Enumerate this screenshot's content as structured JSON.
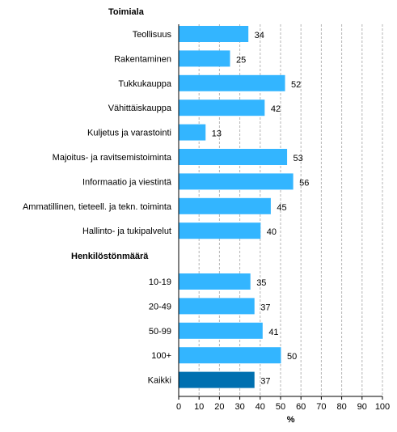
{
  "chart_data": {
    "type": "bar",
    "orientation": "horizontal",
    "xlabel": "%",
    "xlim": [
      0,
      100
    ],
    "xticks": [
      "0",
      "10",
      "20",
      "30",
      "40",
      "50",
      "60",
      "70",
      "80",
      "90",
      "100"
    ],
    "grid": "vertical dashed lines",
    "colors": {
      "bar": "#33b5ff",
      "highlight": "#0070b0"
    },
    "groups": [
      {
        "heading": "Toimiala",
        "categories": [
          "Teollisuus",
          "Rakentaminen",
          "Tukkukauppa",
          "Vähittäiskauppa",
          "Kuljetus ja varastointi",
          "Majoitus- ja ravitsemistoiminta",
          "Informaatio ja viestintä",
          "Ammatillinen, tieteell. ja tekn. toiminta",
          "Hallinto- ja tukipalvelut"
        ],
        "values": [
          34,
          25,
          52,
          42,
          13,
          53,
          56,
          45,
          40
        ],
        "value_labels": [
          "34",
          "25",
          "52",
          "42",
          "13",
          "53",
          "56",
          "45",
          "40"
        ]
      },
      {
        "heading": "Henkilöstönmäärä",
        "categories": [
          "10-19",
          "20-49",
          "50-99",
          "100+",
          "Kaikki"
        ],
        "values": [
          35,
          37,
          41,
          50,
          37
        ],
        "value_labels": [
          "35",
          "37",
          "41",
          "50",
          "37"
        ],
        "highlight_category": "Kaikki"
      }
    ]
  }
}
